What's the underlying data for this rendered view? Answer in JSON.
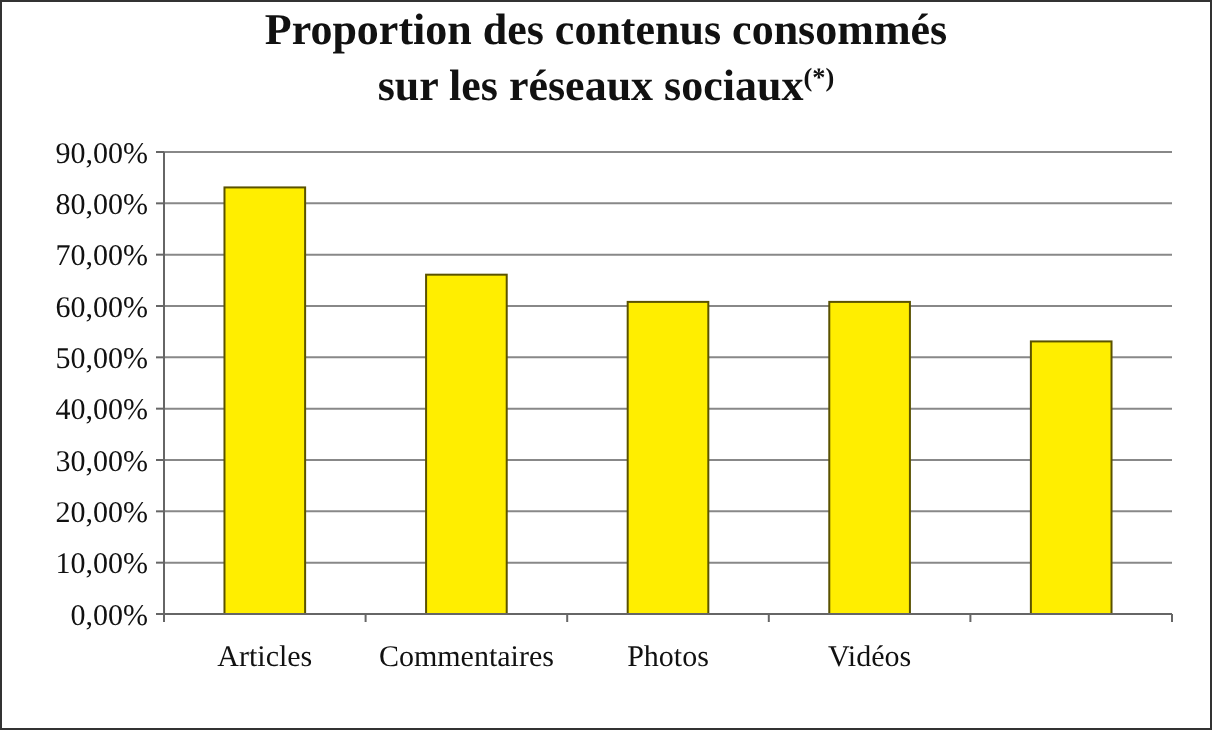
{
  "chart_data": {
    "type": "bar",
    "title": "Proportion des contenus consommés\nsur les réseaux sociaux$^{(*)}$",
    "categories": [
      "Articles",
      "Commentaires",
      "Photos",
      "Vidéos",
      null
    ],
    "values": [
      83.1,
      66.1,
      60.8,
      60.8,
      53.1
    ],
    "color": "#ffee00",
    "ylim": [
      0,
      90
    ],
    "yticks": [
      {
        "value": 0,
        "label": "0,00%"
      },
      {
        "value": 10,
        "label": "10,00%"
      },
      {
        "value": 20,
        "label": "20,00%"
      },
      {
        "value": 30,
        "label": "30,00%"
      },
      {
        "value": 40,
        "label": "40,00%"
      },
      {
        "value": 50,
        "label": "50,00%"
      },
      {
        "value": 60,
        "label": "60,00%"
      },
      {
        "value": 70,
        "label": "70,00%"
      },
      {
        "value": 80,
        "label": "80,00%"
      },
      {
        "value": 90,
        "label": "90,00%"
      }
    ],
    "grid": "y"
  }
}
